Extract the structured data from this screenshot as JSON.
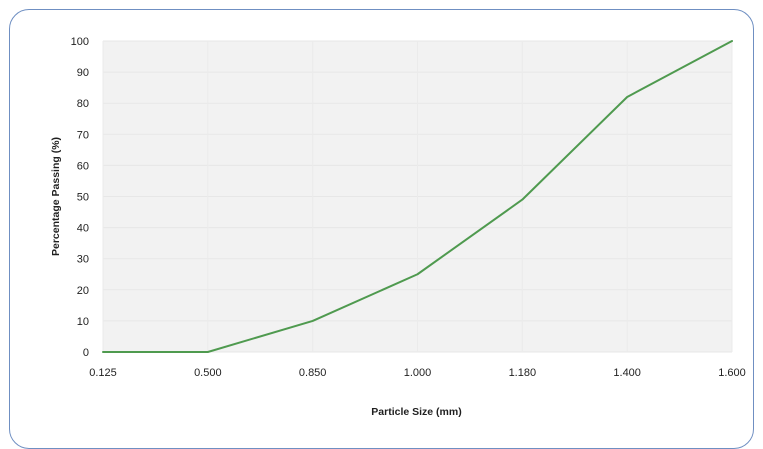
{
  "chart_data": {
    "type": "line",
    "title": "",
    "xlabel": "Particle Size (mm)",
    "ylabel": "Percentage Passing (%)",
    "categories": [
      "0.125",
      "0.500",
      "0.850",
      "1.000",
      "1.180",
      "1.400",
      "1.600"
    ],
    "series": [
      {
        "values": [
          0,
          0,
          10,
          25,
          49,
          82,
          100
        ],
        "color": "#4f9a4f"
      }
    ],
    "ylim": [
      0,
      100
    ],
    "yticks": [
      0,
      10,
      20,
      30,
      40,
      50,
      60,
      70,
      80,
      90,
      100
    ],
    "plot_background": "#f2f2f2",
    "grid": true,
    "legend": "none"
  }
}
